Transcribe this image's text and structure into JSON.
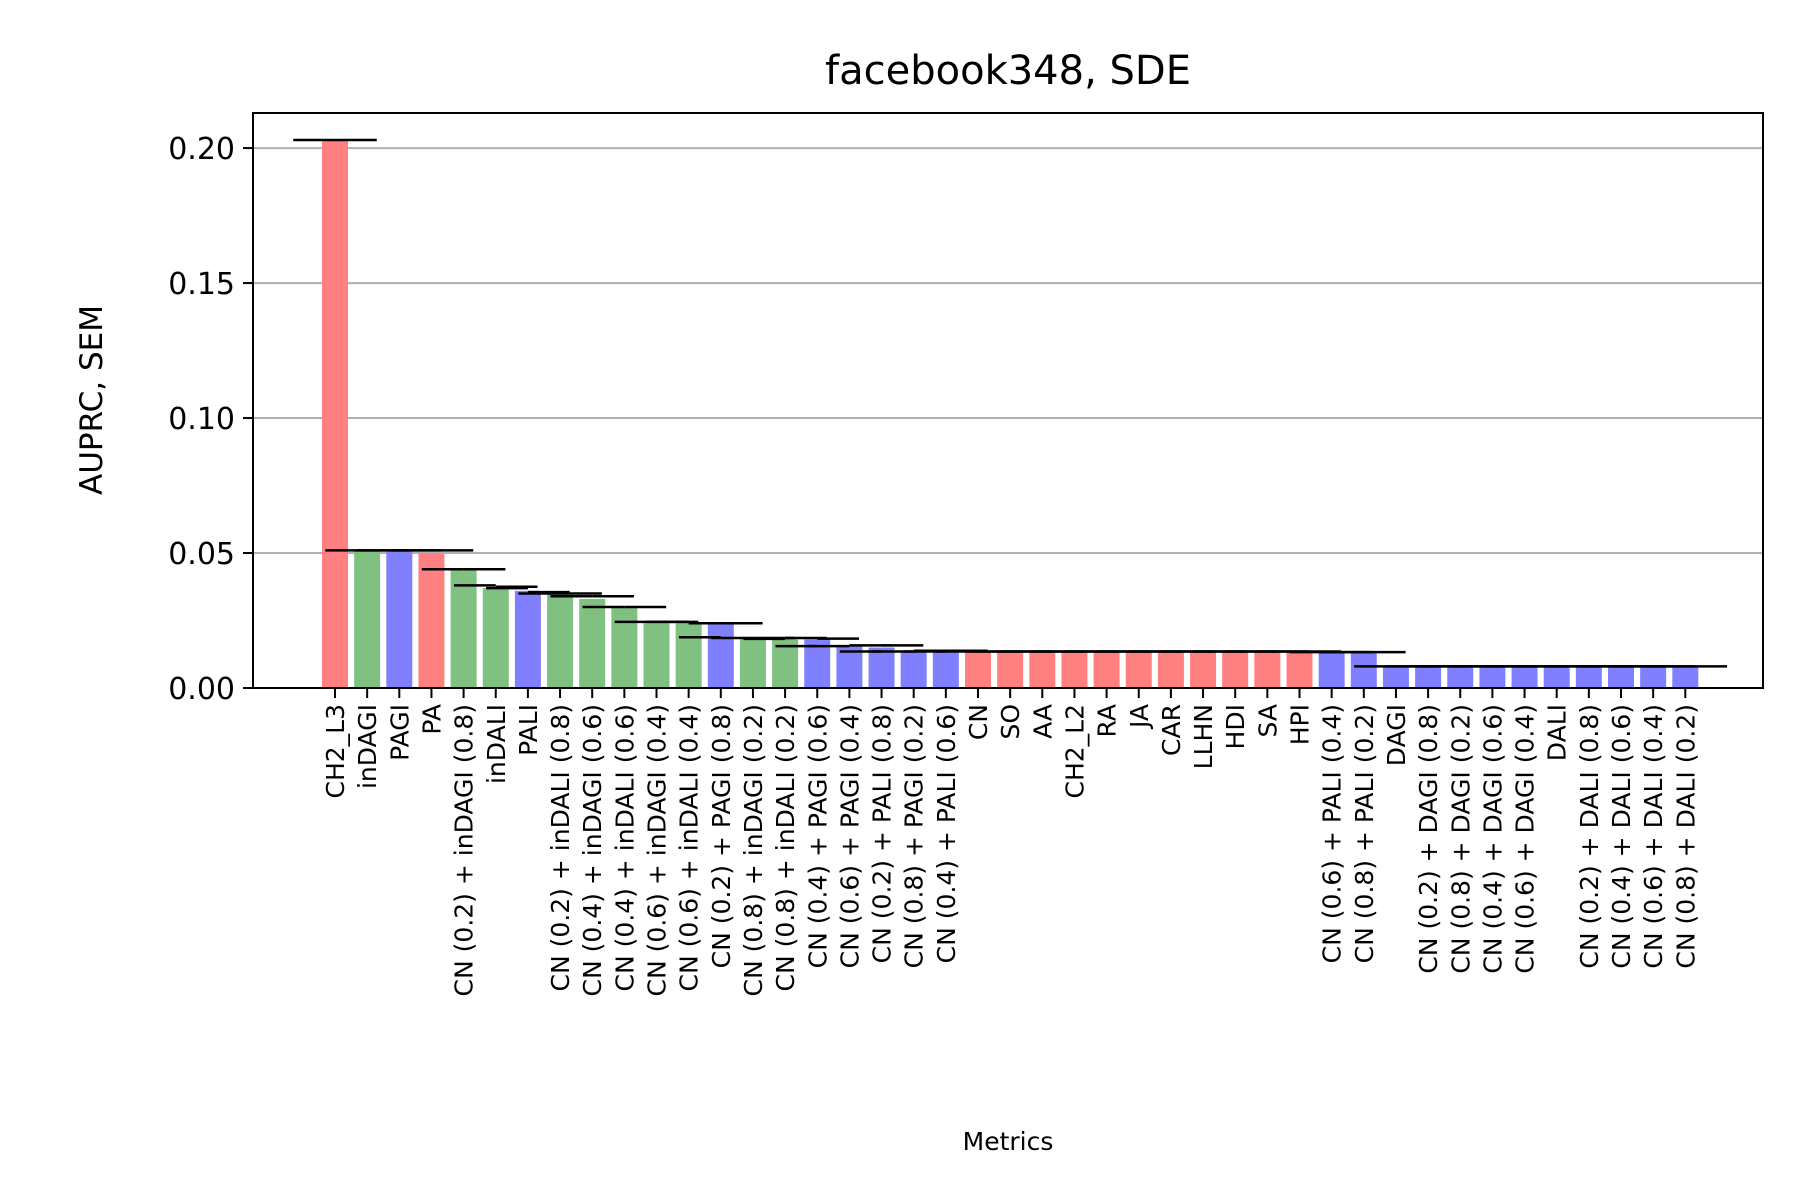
{
  "chart_data": {
    "type": "bar",
    "title": "facebook348, SDE",
    "xlabel": "Metrics",
    "ylabel": "AUPRC, SEM",
    "ylim": [
      0,
      0.213
    ],
    "yticks": [
      "0.00",
      "0.05",
      "0.10",
      "0.15",
      "0.20"
    ],
    "grid": "horizontal",
    "colors": {
      "red": "#ff8080",
      "green": "#80c080",
      "blue": "#8080ff"
    },
    "bars": [
      {
        "label": "CH2_L3",
        "value": 0.203,
        "color": "red",
        "err_left": 0.203,
        "err_right": 0.203
      },
      {
        "label": "inDAGI",
        "value": 0.0508,
        "color": "green",
        "err_left": 0.051,
        "err_right": 0.051
      },
      {
        "label": "PAGI",
        "value": 0.0505,
        "color": "blue",
        "err_left": 0.051,
        "err_right": 0.051
      },
      {
        "label": "PA",
        "value": 0.05,
        "color": "red",
        "err_left": 0.051,
        "err_right": 0.051
      },
      {
        "label": "CN (0.2) + inDAGI (0.8)",
        "value": 0.044,
        "color": "green",
        "err_left": 0.044,
        "err_right": 0.044
      },
      {
        "label": "inDALI",
        "value": 0.037,
        "color": "green",
        "err_left": 0.038,
        "err_right": 0.0375
      },
      {
        "label": "PALI",
        "value": 0.036,
        "color": "blue",
        "err_left": 0.037,
        "err_right": 0.0355
      },
      {
        "label": "CN (0.2) + inDALI (0.8)",
        "value": 0.035,
        "color": "green",
        "err_left": 0.035,
        "err_right": 0.035
      },
      {
        "label": "CN (0.4) + inDAGI (0.6)",
        "value": 0.033,
        "color": "green",
        "err_left": 0.034,
        "err_right": 0.034
      },
      {
        "label": "CN (0.4) + inDALI (0.6)",
        "value": 0.03,
        "color": "green",
        "err_left": 0.03,
        "err_right": 0.03
      },
      {
        "label": "CN (0.6) + inDAGI (0.4)",
        "value": 0.024,
        "color": "green",
        "err_left": 0.0245,
        "err_right": 0.0245
      },
      {
        "label": "CN (0.6) + inDALI (0.4)",
        "value": 0.024,
        "color": "green",
        "err_left": 0.0245,
        "err_right": 0.024
      },
      {
        "label": "CN (0.2) + PAGI (0.8)",
        "value": 0.024,
        "color": "blue",
        "err_left": 0.0188,
        "err_right": 0.024
      },
      {
        "label": "CN (0.8) + inDAGI (0.2)",
        "value": 0.018,
        "color": "green",
        "err_left": 0.0185,
        "err_right": 0.0185
      },
      {
        "label": "CN (0.8) + inDALI (0.2)",
        "value": 0.018,
        "color": "green",
        "err_left": 0.0182,
        "err_right": 0.0185
      },
      {
        "label": "CN (0.4) + PAGI (0.6)",
        "value": 0.018,
        "color": "blue",
        "err_left": 0.0155,
        "err_right": 0.0183
      },
      {
        "label": "CN (0.6) + PAGI (0.4)",
        "value": 0.0155,
        "color": "blue",
        "err_left": 0.0155,
        "err_right": 0.0158
      },
      {
        "label": "CN (0.2) + PALI (0.8)",
        "value": 0.015,
        "color": "blue",
        "err_left": 0.0135,
        "err_right": 0.0158
      },
      {
        "label": "CN (0.8) + PAGI (0.2)",
        "value": 0.0135,
        "color": "blue",
        "err_left": 0.0135,
        "err_right": 0.0138
      },
      {
        "label": "CN (0.4) + PALI (0.6)",
        "value": 0.0135,
        "color": "blue",
        "err_left": 0.0135,
        "err_right": 0.0138
      },
      {
        "label": "CN",
        "value": 0.0135,
        "color": "red",
        "err_left": 0.0135,
        "err_right": 0.0135
      },
      {
        "label": "SO",
        "value": 0.0135,
        "color": "red",
        "err_left": 0.0135,
        "err_right": 0.0135
      },
      {
        "label": "AA",
        "value": 0.0135,
        "color": "red",
        "err_left": 0.0135,
        "err_right": 0.0135
      },
      {
        "label": "CH2_L2",
        "value": 0.0135,
        "color": "red",
        "err_left": 0.0135,
        "err_right": 0.0135
      },
      {
        "label": "RA",
        "value": 0.0135,
        "color": "red",
        "err_left": 0.0135,
        "err_right": 0.0135
      },
      {
        "label": "JA",
        "value": 0.0135,
        "color": "red",
        "err_left": 0.0135,
        "err_right": 0.0135
      },
      {
        "label": "CAR",
        "value": 0.0135,
        "color": "red",
        "err_left": 0.0135,
        "err_right": 0.0135
      },
      {
        "label": "LLHN",
        "value": 0.0135,
        "color": "red",
        "err_left": 0.0135,
        "err_right": 0.0135
      },
      {
        "label": "HDI",
        "value": 0.0135,
        "color": "red",
        "err_left": 0.0135,
        "err_right": 0.0135
      },
      {
        "label": "SA",
        "value": 0.0135,
        "color": "red",
        "err_left": 0.0135,
        "err_right": 0.0135
      },
      {
        "label": "HPI",
        "value": 0.0135,
        "color": "red",
        "err_left": 0.0135,
        "err_right": 0.0135
      },
      {
        "label": "CN (0.6) + PALI (0.4)",
        "value": 0.013,
        "color": "blue",
        "err_left": 0.0133,
        "err_right": 0.0133
      },
      {
        "label": "CN (0.8) + PALI (0.2)",
        "value": 0.013,
        "color": "blue",
        "err_left": 0.0133,
        "err_right": 0.0133
      },
      {
        "label": "DAGI",
        "value": 0.008,
        "color": "blue",
        "err_left": 0.008,
        "err_right": 0.008
      },
      {
        "label": "CN (0.2) + DAGI (0.8)",
        "value": 0.008,
        "color": "blue",
        "err_left": 0.008,
        "err_right": 0.008
      },
      {
        "label": "CN (0.8) + DAGI (0.2)",
        "value": 0.008,
        "color": "blue",
        "err_left": 0.008,
        "err_right": 0.008
      },
      {
        "label": "CN (0.4) + DAGI (0.6)",
        "value": 0.008,
        "color": "blue",
        "err_left": 0.008,
        "err_right": 0.008
      },
      {
        "label": "CN (0.6) + DAGI (0.4)",
        "value": 0.008,
        "color": "blue",
        "err_left": 0.008,
        "err_right": 0.008
      },
      {
        "label": "DALI",
        "value": 0.008,
        "color": "blue",
        "err_left": 0.008,
        "err_right": 0.008
      },
      {
        "label": "CN (0.2) + DALI (0.8)",
        "value": 0.008,
        "color": "blue",
        "err_left": 0.008,
        "err_right": 0.008
      },
      {
        "label": "CN (0.4) + DALI (0.6)",
        "value": 0.008,
        "color": "blue",
        "err_left": 0.008,
        "err_right": 0.008
      },
      {
        "label": "CN (0.6) + DALI (0.4)",
        "value": 0.008,
        "color": "blue",
        "err_left": 0.008,
        "err_right": 0.008
      },
      {
        "label": "CN (0.8) + DALI (0.2)",
        "value": 0.008,
        "color": "blue",
        "err_left": 0.008,
        "err_right": 0.008
      }
    ]
  }
}
